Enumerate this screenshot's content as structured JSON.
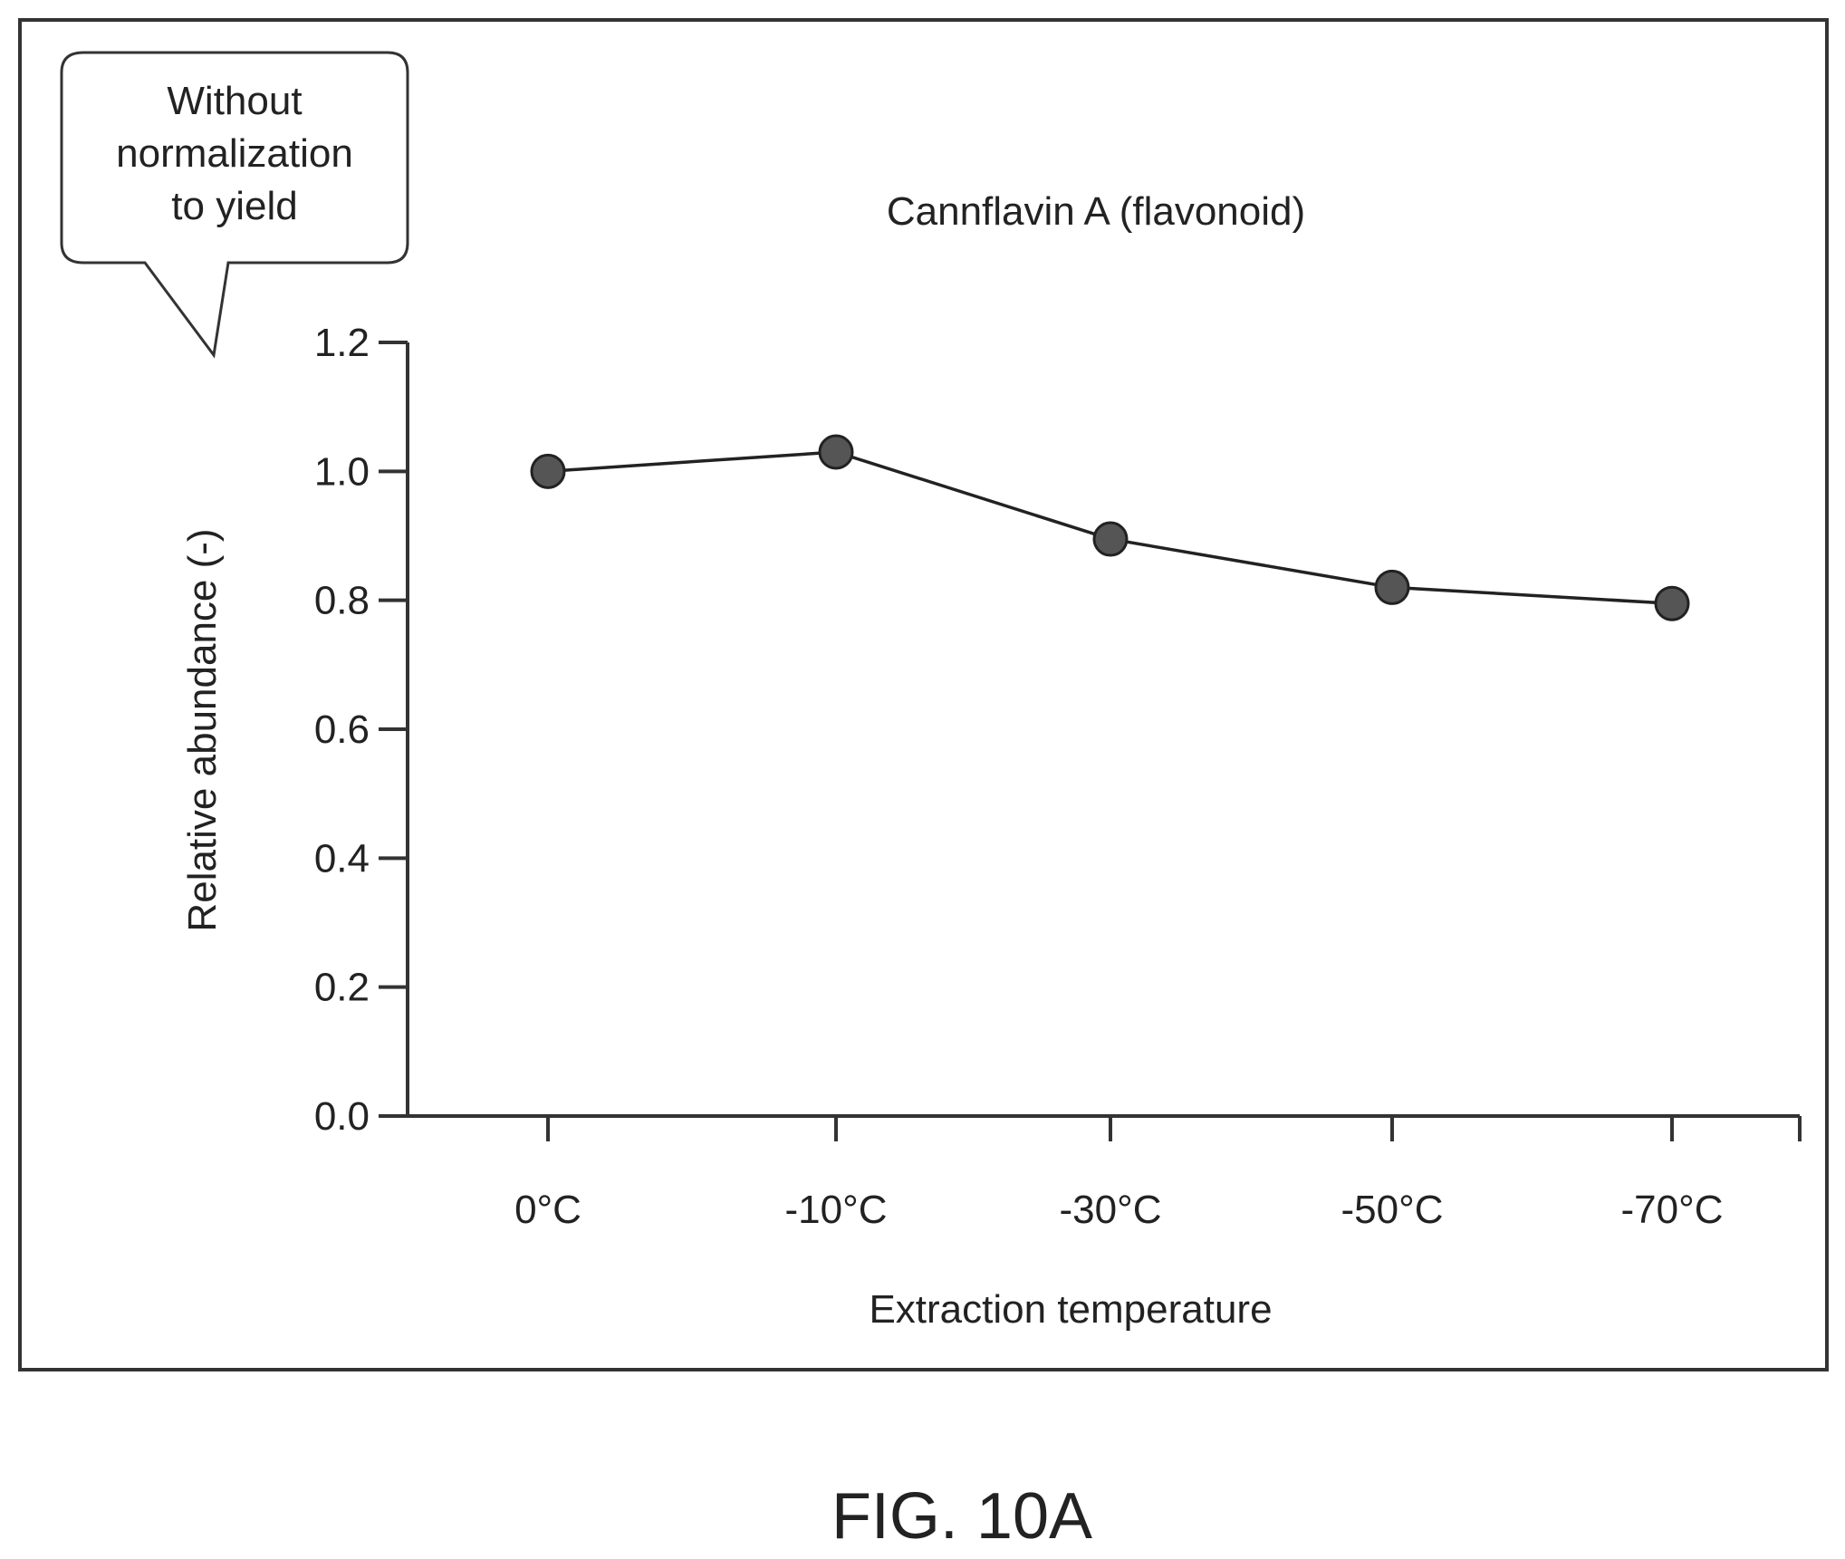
{
  "figure_label": "FIG. 10A",
  "callout_text": [
    "Without",
    "normalization",
    "to yield"
  ],
  "chart_data": {
    "type": "line",
    "title": "Cannflavin A (flavonoid)",
    "xlabel": "Extraction temperature",
    "ylabel": "Relative abundance (-)",
    "categories": [
      "0°C",
      "-10°C",
      "-30°C",
      "-50°C",
      "-70°C"
    ],
    "series": [
      {
        "values": [
          1.0,
          1.03,
          0.895,
          0.82,
          0.795
        ]
      }
    ],
    "ylim": [
      0,
      1.2
    ],
    "yticks": [
      "0.0",
      "0.2",
      "0.4",
      "0.6",
      "0.8",
      "1.0",
      "1.2"
    ],
    "grid": false,
    "marker": "circle",
    "colors": {
      "line": "#222222",
      "marker": "#555555",
      "frame": "#333333"
    }
  }
}
